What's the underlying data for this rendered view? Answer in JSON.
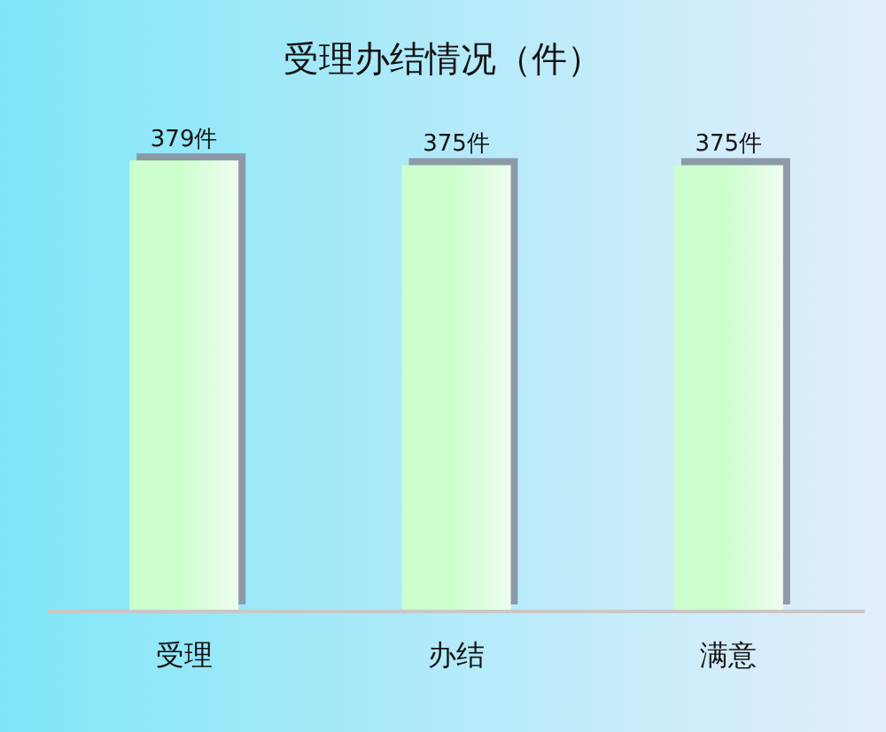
{
  "chart_data": {
    "type": "bar",
    "title": "受理办结情况（件）",
    "categories": [
      "受理",
      "办结",
      "满意"
    ],
    "values": [
      379,
      375,
      375
    ],
    "value_labels": [
      "379件",
      "375件",
      "375件"
    ],
    "color": "#ccffcc",
    "tick_labels": "x"
  }
}
